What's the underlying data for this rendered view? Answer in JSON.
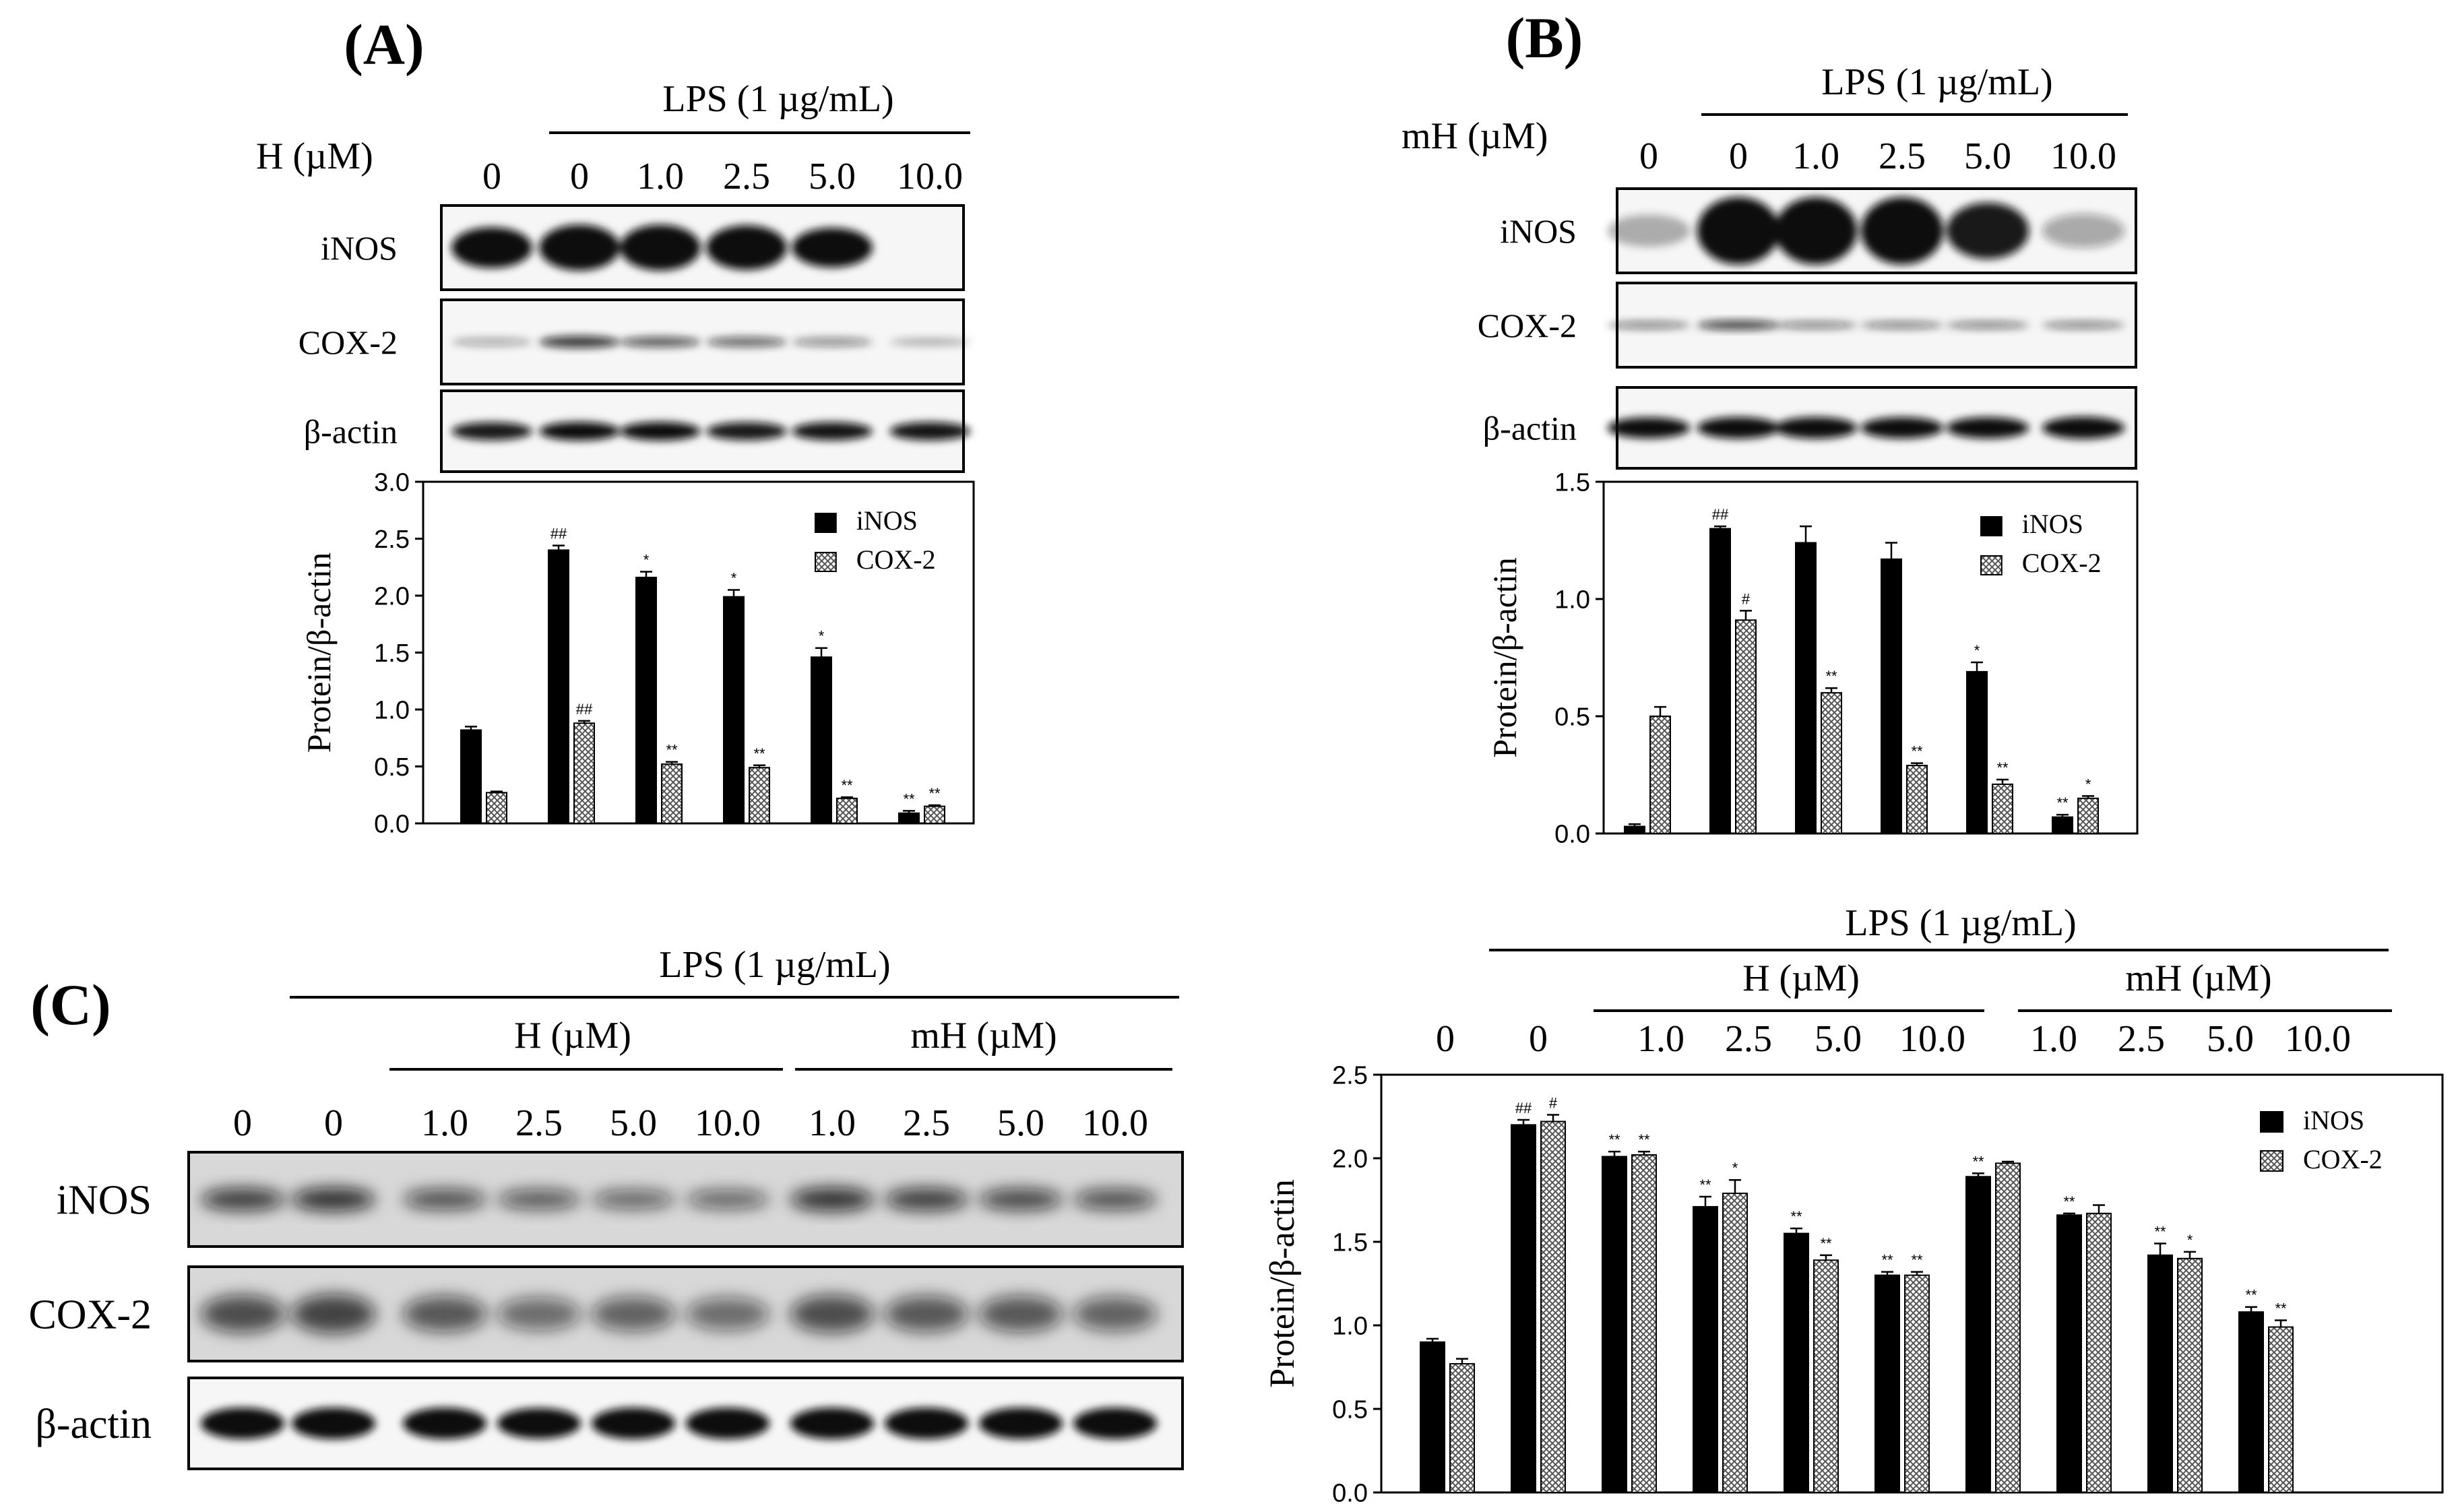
{
  "colors": {
    "ink": "#000000",
    "paper": "#ffffff",
    "hatch": "#555555",
    "blot_dark": "#111111",
    "blot_bg": "#f4f4f4"
  },
  "panels": {
    "A": {
      "label": "(A)",
      "lps": "LPS (1 µg/mL)",
      "dose_label": "H (µM)",
      "lanes": [
        "0",
        "0",
        "1.0",
        "2.5",
        "5.0",
        "10.0"
      ],
      "blots": [
        "iNOS",
        "COX-2",
        "β-actin"
      ]
    },
    "B": {
      "label": "(B)",
      "lps": "LPS (1 µg/mL)",
      "dose_label": "mH (µM)",
      "lanes": [
        "0",
        "0",
        "1.0",
        "2.5",
        "5.0",
        "10.0"
      ],
      "blots": [
        "iNOS",
        "COX-2",
        "β-actin"
      ]
    },
    "C": {
      "label": "(C)",
      "lps": "LPS (1 µg/mL)",
      "group1": "H (µM)",
      "group2": "mH (µM)",
      "lanes": [
        "0",
        "0",
        "1.0",
        "2.5",
        "5.0",
        "10.0",
        "1.0",
        "2.5",
        "5.0",
        "10.0"
      ],
      "blots": [
        "iNOS",
        "COX-2",
        "β-actin"
      ]
    },
    "C_chart_header": {
      "lps": "LPS (1 µg/mL)",
      "group1": "H (µM)",
      "group2": "mH (µM)",
      "lanes": [
        "0",
        "0",
        "1.0",
        "2.5",
        "5.0",
        "10.0",
        "1.0",
        "2.5",
        "5.0",
        "10.0"
      ]
    }
  },
  "chart_data": [
    {
      "id": "A",
      "type": "bar",
      "title": "",
      "xlabel": "",
      "ylabel": "Protein/β-actin",
      "ylim": [
        0,
        3.0
      ],
      "yticks": [
        "0.0",
        "0.5",
        "1.0",
        "1.5",
        "2.0",
        "2.5",
        "3.0"
      ],
      "legend": "top-right",
      "categories": [
        "0",
        "0",
        "1.0",
        "2.5",
        "5.0",
        "10.0"
      ],
      "series": [
        {
          "name": "iNOS",
          "values": [
            0.82,
            2.4,
            2.16,
            1.99,
            1.46,
            0.09
          ],
          "errors": [
            0.03,
            0.04,
            0.05,
            0.06,
            0.08,
            0.02
          ],
          "marks": [
            "",
            "##",
            "*",
            "*",
            "*",
            "**"
          ]
        },
        {
          "name": "COX-2",
          "values": [
            0.27,
            0.88,
            0.52,
            0.49,
            0.22,
            0.15
          ],
          "errors": [
            0.01,
            0.02,
            0.02,
            0.02,
            0.01,
            0.01
          ],
          "marks": [
            "",
            "##",
            "**",
            "**",
            "**",
            "**"
          ]
        }
      ]
    },
    {
      "id": "B",
      "type": "bar",
      "title": "",
      "xlabel": "",
      "ylabel": "Protein/β-actin",
      "ylim": [
        0,
        1.5
      ],
      "yticks": [
        "0.0",
        "0.5",
        "1.0",
        "1.5"
      ],
      "legend": "top-right",
      "categories": [
        "0",
        "0",
        "1.0",
        "2.5",
        "5.0",
        "10.0"
      ],
      "series": [
        {
          "name": "iNOS",
          "values": [
            0.03,
            1.3,
            1.24,
            1.17,
            0.69,
            0.07
          ],
          "errors": [
            0.01,
            0.01,
            0.07,
            0.07,
            0.04,
            0.01
          ],
          "marks": [
            "",
            "##",
            "",
            "",
            "*",
            "**"
          ]
        },
        {
          "name": "COX-2",
          "values": [
            0.5,
            0.91,
            0.6,
            0.29,
            0.21,
            0.15
          ],
          "errors": [
            0.04,
            0.04,
            0.02,
            0.01,
            0.02,
            0.01
          ],
          "marks": [
            "",
            "#",
            "**",
            "**",
            "**",
            "*"
          ]
        }
      ]
    },
    {
      "id": "C",
      "type": "bar",
      "title": "",
      "xlabel": "",
      "ylabel": "Protein/β-actin",
      "ylim": [
        0,
        2.5
      ],
      "yticks": [
        "0.0",
        "0.5",
        "1.0",
        "1.5",
        "2.0",
        "2.5"
      ],
      "legend": "top-right",
      "categories": [
        "0",
        "0",
        "1.0",
        "2.5",
        "5.0",
        "10.0",
        "1.0",
        "2.5",
        "5.0",
        "10.0"
      ],
      "series": [
        {
          "name": "iNOS",
          "values": [
            0.9,
            2.2,
            2.01,
            1.71,
            1.55,
            1.3,
            1.89,
            1.66,
            1.42,
            1.08
          ],
          "errors": [
            0.02,
            0.03,
            0.03,
            0.06,
            0.03,
            0.02,
            0.02,
            0.01,
            0.07,
            0.03
          ],
          "marks": [
            "",
            "##",
            "**",
            "**",
            "**",
            "**",
            "**",
            "**",
            "**",
            "**"
          ]
        },
        {
          "name": "COX-2",
          "values": [
            0.77,
            2.22,
            2.02,
            1.79,
            1.39,
            1.3,
            1.97,
            1.67,
            1.4,
            0.99
          ],
          "errors": [
            0.03,
            0.04,
            0.02,
            0.08,
            0.03,
            0.02,
            0.01,
            0.05,
            0.04,
            0.04
          ],
          "marks": [
            "",
            "#",
            "**",
            "*",
            "**",
            "**",
            "",
            "",
            "*",
            "**"
          ]
        }
      ]
    }
  ]
}
